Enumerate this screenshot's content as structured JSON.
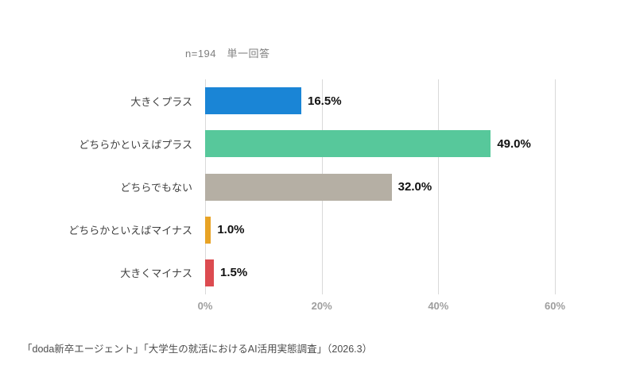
{
  "chart_data": {
    "type": "bar",
    "orientation": "horizontal",
    "annotation": "n=194　単一回答",
    "categories": [
      "大きくプラス",
      "どちらかといえばプラス",
      "どちらでもない",
      "どちらかといえばマイナス",
      "大きくマイナス"
    ],
    "values": [
      16.5,
      49.0,
      32.0,
      1.0,
      1.5
    ],
    "value_labels": [
      "16.5%",
      "49.0%",
      "32.0%",
      "1.0%",
      "1.5%"
    ],
    "colors": [
      "#1a85d6",
      "#57c89b",
      "#b5afa4",
      "#e8a325",
      "#dc4b50"
    ],
    "x_ticks": [
      "0%",
      "20%",
      "40%",
      "60%"
    ],
    "x_tick_values": [
      0,
      20,
      40,
      60
    ],
    "xlim": [
      0,
      60
    ],
    "grid": true,
    "legend": false,
    "source": "「doda新卒エージェント」「大学生の就活におけるAI活用実態調査」（2026.3）"
  }
}
